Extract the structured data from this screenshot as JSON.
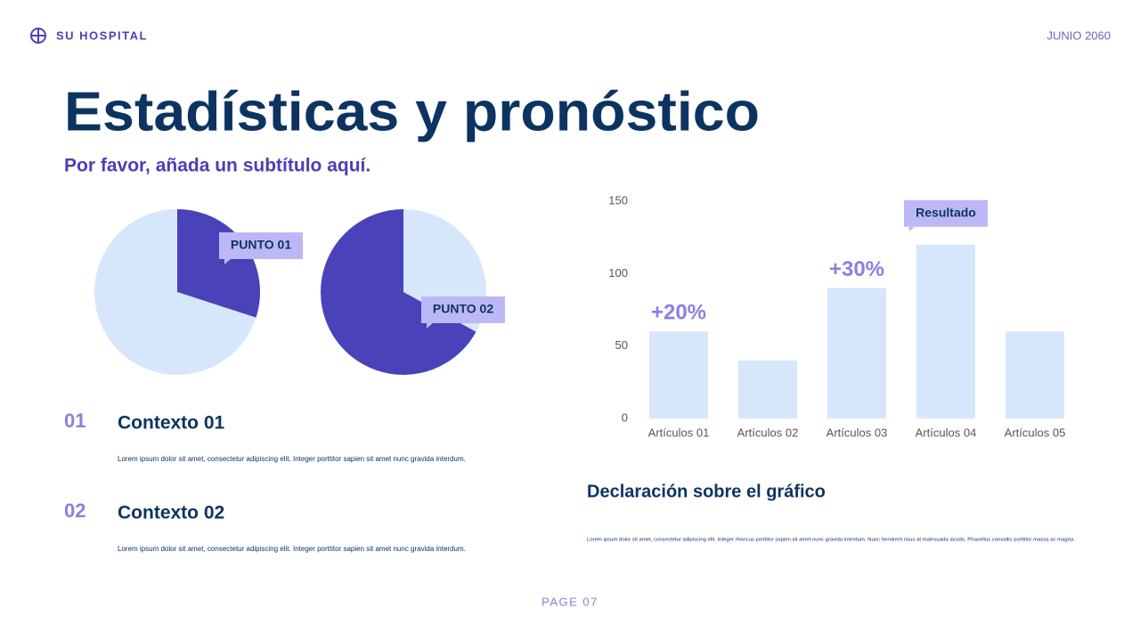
{
  "header": {
    "brand": "SU HOSPITAL",
    "date": "JUNIO 2060"
  },
  "title": "Estadísticas y pronóstico",
  "subtitle": "Por favor, añada un subtítulo aquí.",
  "chart_data": [
    {
      "type": "pie",
      "values": [
        30,
        70
      ],
      "colors": [
        "#4942b9",
        "#d6e6fb"
      ],
      "annotation": "PUNTO 01"
    },
    {
      "type": "pie",
      "values": [
        33,
        67
      ],
      "colors": [
        "#d6e6fb",
        "#4942b9"
      ],
      "annotation": "PUNTO 02"
    },
    {
      "type": "bar",
      "categories": [
        "Artículos 01",
        "Artículos 02",
        "Artículos 03",
        "Artículos 04",
        "Artículos 05"
      ],
      "values": [
        60,
        40,
        90,
        120,
        60
      ],
      "color": "#d6e6fb",
      "ylim": [
        0,
        150
      ],
      "yticks": [
        0,
        50,
        100,
        150
      ],
      "grid": false,
      "annotations": [
        {
          "text": "+20%",
          "at": "Artículos 01"
        },
        {
          "text": "+30%",
          "at": "Artículos 03"
        },
        {
          "text": "Resultado",
          "at": "Artículos 04",
          "boxed": true
        }
      ]
    }
  ],
  "contexts": [
    {
      "number": "01",
      "heading": "Contexto 01",
      "body": "Lorem ipsum dolor sit amet, consectetur adipiscing elit. Integer porttitor sapien sit amet nunc gravida interdum."
    },
    {
      "number": "02",
      "heading": "Contexto 02",
      "body": "Lorem ipsum dolor sit amet, consectetur adipiscing elit. Integer porttitor sapien sit amet nunc gravida interdum."
    }
  ],
  "statement": {
    "heading": "Declaración sobre el gráfico",
    "body": "Lorem ipsum dolor sit amet, consectetur adipiscing elit. Integer rhoncus porttitor sapien sit amet nunc gravida interdum. Nunc hendrerit risus at malesuada iaculis. Phasellus convallis porttitor massa ac magna."
  },
  "footer": {
    "page": "PAGE 07"
  }
}
